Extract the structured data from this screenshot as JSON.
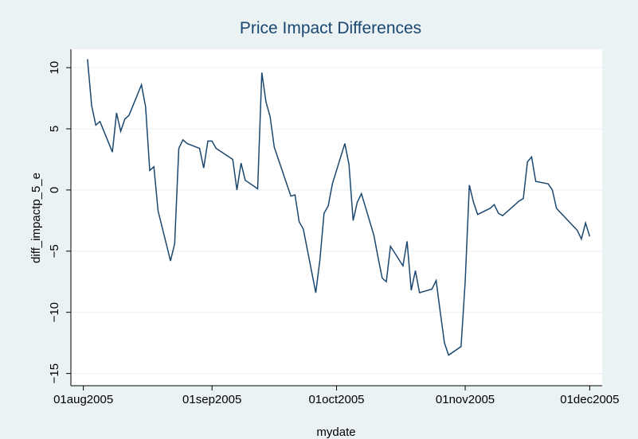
{
  "chart_data": {
    "type": "line",
    "title": "Price Impact Differences",
    "x_label": "mydate",
    "y_label": "diff_impactp_5_e",
    "x": [
      "2005-08-02",
      "2005-08-03",
      "2005-08-04",
      "2005-08-05",
      "2005-08-08",
      "2005-08-09",
      "2005-08-10",
      "2005-08-11",
      "2005-08-12",
      "2005-08-15",
      "2005-08-16",
      "2005-08-17",
      "2005-08-18",
      "2005-08-19",
      "2005-08-22",
      "2005-08-23",
      "2005-08-24",
      "2005-08-25",
      "2005-08-26",
      "2005-08-29",
      "2005-08-30",
      "2005-08-31",
      "2005-09-01",
      "2005-09-02",
      "2005-09-06",
      "2005-09-07",
      "2005-09-08",
      "2005-09-09",
      "2005-09-12",
      "2005-09-13",
      "2005-09-14",
      "2005-09-15",
      "2005-09-16",
      "2005-09-19",
      "2005-09-20",
      "2005-09-21",
      "2005-09-22",
      "2005-09-23",
      "2005-09-26",
      "2005-09-27",
      "2005-09-28",
      "2005-09-29",
      "2005-09-30",
      "2005-10-03",
      "2005-10-04",
      "2005-10-05",
      "2005-10-06",
      "2005-10-07",
      "2005-10-10",
      "2005-10-11",
      "2005-10-12",
      "2005-10-13",
      "2005-10-14",
      "2005-10-17",
      "2005-10-18",
      "2005-10-19",
      "2005-10-20",
      "2005-10-21",
      "2005-10-24",
      "2005-10-25",
      "2005-10-26",
      "2005-10-27",
      "2005-10-28",
      "2005-10-31",
      "2005-11-01",
      "2005-11-02",
      "2005-11-03",
      "2005-11-04",
      "2005-11-07",
      "2005-11-08",
      "2005-11-09",
      "2005-11-10",
      "2005-11-14",
      "2005-11-15",
      "2005-11-16",
      "2005-11-17",
      "2005-11-18",
      "2005-11-21",
      "2005-11-22",
      "2005-11-23",
      "2005-11-28",
      "2005-11-29",
      "2005-11-30",
      "2005-12-01"
    ],
    "series": [
      {
        "name": "diff_impactp_5_e",
        "color": "#1a476f",
        "values": [
          10.7,
          6.9,
          5.3,
          5.6,
          3.1,
          6.3,
          4.8,
          5.8,
          6.1,
          8.6,
          6.8,
          1.6,
          1.9,
          -1.7,
          -5.8,
          -4.4,
          3.4,
          4.1,
          3.8,
          3.4,
          1.8,
          4.0,
          4.0,
          3.4,
          2.5,
          0.0,
          2.2,
          0.8,
          0.1,
          9.6,
          7.2,
          6.0,
          3.5,
          0.5,
          -0.5,
          -0.4,
          -2.6,
          -3.2,
          -8.4,
          -5.7,
          -1.9,
          -1.3,
          0.5,
          3.8,
          2.1,
          -2.5,
          -1.0,
          -0.3,
          -3.7,
          -5.5,
          -7.2,
          -7.5,
          -4.6,
          -6.2,
          -4.2,
          -8.2,
          -6.6,
          -8.4,
          -8.1,
          -7.4,
          -10.0,
          -12.5,
          -13.5,
          -12.8,
          -7.5,
          0.4,
          -1.0,
          -2.0,
          -1.5,
          -1.2,
          -1.9,
          -2.1,
          -0.9,
          -0.7,
          2.3,
          2.7,
          0.7,
          0.5,
          0.0,
          -1.5,
          -3.3,
          -4.0,
          -2.7,
          -3.8
        ]
      }
    ],
    "xlim": [
      "2005-07-29",
      "2005-12-04"
    ],
    "xticks": [
      {
        "value": "2005-08-01",
        "label": "01aug2005"
      },
      {
        "value": "2005-09-01",
        "label": "01sep2005"
      },
      {
        "value": "2005-10-01",
        "label": "01oct2005"
      },
      {
        "value": "2005-11-01",
        "label": "01nov2005"
      },
      {
        "value": "2005-12-01",
        "label": "01dec2005"
      }
    ],
    "ylim": [
      -16,
      11.5
    ],
    "yticks": [
      {
        "value": -15,
        "label": "−15"
      },
      {
        "value": -10,
        "label": "−10"
      },
      {
        "value": -5,
        "label": "−5"
      },
      0,
      5,
      10
    ],
    "grid": true
  }
}
